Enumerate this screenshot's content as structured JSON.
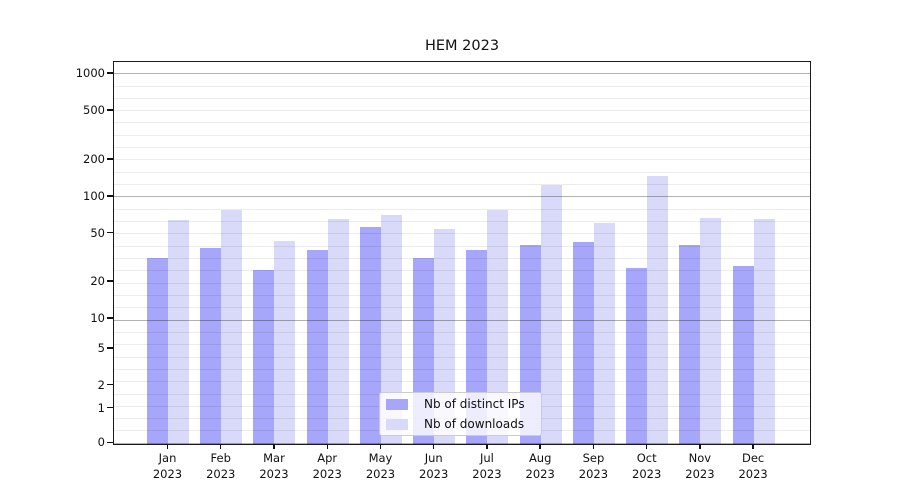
{
  "title": "HEM 2023",
  "chart_data": {
    "type": "bar",
    "title": "HEM 2023",
    "categories": [
      "Jan",
      "Feb",
      "Mar",
      "Apr",
      "May",
      "Jun",
      "Jul",
      "Aug",
      "Sep",
      "Oct",
      "Nov",
      "Dec"
    ],
    "category_year": "2023",
    "series": [
      {
        "name": "Nb of distinct IPs",
        "key": "distinct-ips",
        "color": "#a6a6fa",
        "values": [
          31,
          38,
          25,
          36,
          56,
          31,
          36,
          40,
          42,
          26,
          40,
          27
        ]
      },
      {
        "name": "Nb of downloads",
        "key": "downloads",
        "color": "#d9d9fa",
        "values": [
          64,
          78,
          43,
          65,
          70,
          54,
          77,
          125,
          60,
          146,
          66,
          65
        ]
      }
    ],
    "yticks": [
      1000,
      500,
      200,
      100,
      50,
      20,
      10,
      5,
      2,
      1,
      0
    ],
    "yscale": "log-like (asinh) with 0 baseline",
    "ylim": [
      0,
      1400
    ],
    "grid": "horizontal major+minor, drawn over bars",
    "legend_position": "lower center inside plot"
  }
}
